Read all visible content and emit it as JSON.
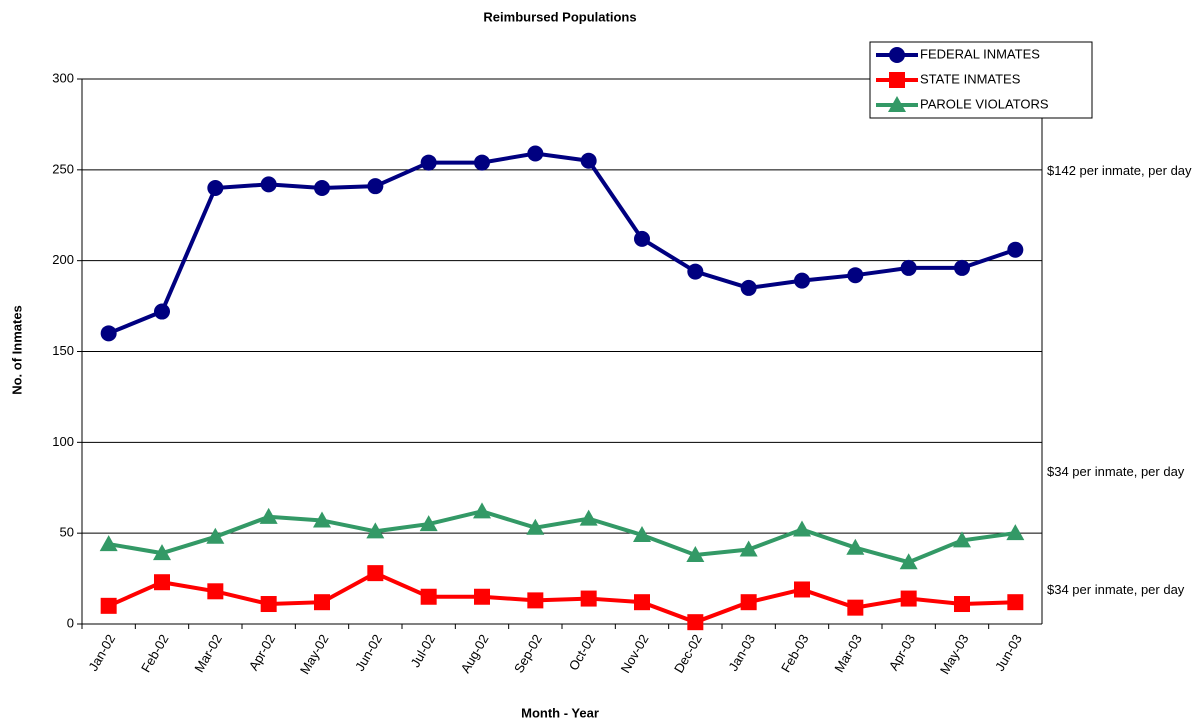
{
  "chart_data": {
    "type": "line",
    "title": "Reimbursed Populations",
    "x_label": "Month - Year",
    "y_label": "No. of Inmates",
    "categories": [
      "Jan-02",
      "Feb-02",
      "Mar-02",
      "Apr-02",
      "May-02",
      "Jun-02",
      "Jul-02",
      "Aug-02",
      "Sep-02",
      "Oct-02",
      "Nov-02",
      "Dec-02",
      "Jan-03",
      "Feb-03",
      "Mar-03",
      "Apr-03",
      "May-03",
      "Jun-03"
    ],
    "series": [
      {
        "name": "FEDERAL INMATES",
        "color": "#000080",
        "marker": "circle",
        "values": [
          160,
          172,
          240,
          242,
          240,
          241,
          254,
          254,
          259,
          255,
          212,
          194,
          185,
          189,
          192,
          196,
          196,
          206
        ]
      },
      {
        "name": "STATE INMATES",
        "color": "#ff0000",
        "marker": "square",
        "values": [
          10,
          23,
          18,
          11,
          12,
          28,
          15,
          15,
          13,
          14,
          12,
          1,
          12,
          19,
          9,
          14,
          11,
          12
        ]
      },
      {
        "name": "PAROLE VIOLATORS",
        "color": "#339966",
        "marker": "triangle",
        "values": [
          44,
          39,
          48,
          59,
          57,
          51,
          55,
          62,
          53,
          58,
          49,
          38,
          41,
          52,
          42,
          34,
          46,
          50
        ]
      }
    ],
    "annotations": [
      "$142 per inmate, per day",
      "$34 per inmate, per day",
      "$34 per inmate, per day"
    ],
    "ylim": [
      0,
      300
    ],
    "yticks": [
      0,
      50,
      100,
      150,
      200,
      250,
      300
    ],
    "grid": true,
    "legend": "top-right"
  }
}
